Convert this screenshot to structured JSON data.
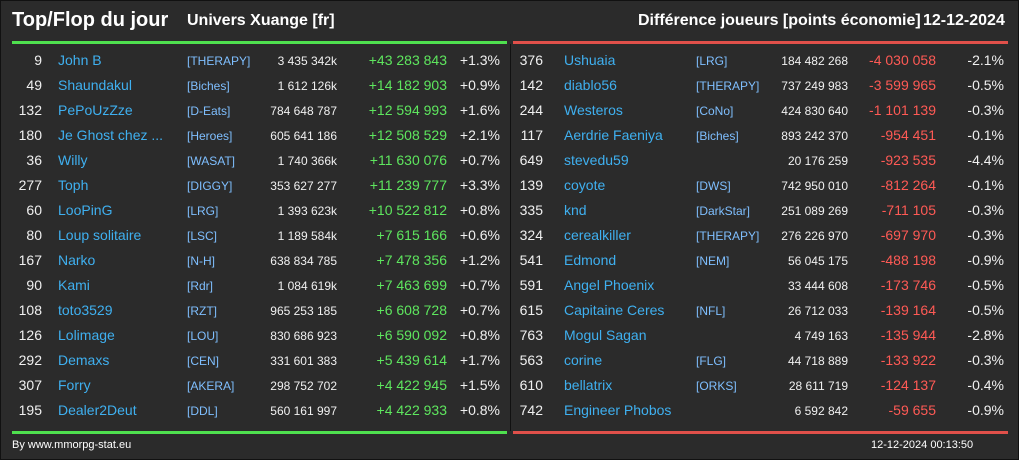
{
  "header": {
    "title": "Top/Flop du jour",
    "universe": "Univers Xuange [fr]",
    "difference": "Différence joueurs [points économie]",
    "date": "12-12-2024"
  },
  "footer": {
    "source": "By www.mmorpg-stat.eu",
    "timestamp": "12-12-2024 00:13:50"
  },
  "colors": {
    "top_accent": "#4fe04f",
    "flop_accent": "#e0504a",
    "name_color": "#3fb0f0"
  },
  "top": [
    {
      "rank": "9",
      "name": "John B",
      "tag": "[THERAPY]",
      "points": "3 435 342k",
      "delta": "+43 283 843",
      "pct": "+1.3%"
    },
    {
      "rank": "49",
      "name": "Shaundakul",
      "tag": "[Biches]",
      "points": "1 612 126k",
      "delta": "+14 182 903",
      "pct": "+0.9%"
    },
    {
      "rank": "132",
      "name": "PePoUzZze",
      "tag": "[D-Eats]",
      "points": "784 648 787",
      "delta": "+12 594 993",
      "pct": "+1.6%"
    },
    {
      "rank": "180",
      "name": "Je Ghost chez ...",
      "tag": "[Heroes]",
      "points": "605 641 186",
      "delta": "+12 508 529",
      "pct": "+2.1%"
    },
    {
      "rank": "36",
      "name": "Willy",
      "tag": "[WASAT]",
      "points": "1 740 366k",
      "delta": "+11 630 076",
      "pct": "+0.7%"
    },
    {
      "rank": "277",
      "name": "Toph",
      "tag": "[DIGGY]",
      "points": "353 627 277",
      "delta": "+11 239 777",
      "pct": "+3.3%"
    },
    {
      "rank": "60",
      "name": "LooPinG",
      "tag": "[LRG]",
      "points": "1 393 623k",
      "delta": "+10 522 812",
      "pct": "+0.8%"
    },
    {
      "rank": "80",
      "name": "Loup solitaire",
      "tag": "[LSC]",
      "points": "1 189 584k",
      "delta": "+7 615 166",
      "pct": "+0.6%"
    },
    {
      "rank": "167",
      "name": "Narko",
      "tag": "[N-H]",
      "points": "638 834 785",
      "delta": "+7 478 356",
      "pct": "+1.2%"
    },
    {
      "rank": "90",
      "name": "Kami",
      "tag": "[Rdr]",
      "points": "1 084 619k",
      "delta": "+7 463 699",
      "pct": "+0.7%"
    },
    {
      "rank": "108",
      "name": "toto3529",
      "tag": "[RZT]",
      "points": "965 253 185",
      "delta": "+6 608 728",
      "pct": "+0.7%"
    },
    {
      "rank": "126",
      "name": "Lolimage",
      "tag": "[LOU]",
      "points": "830 686 923",
      "delta": "+6 590 092",
      "pct": "+0.8%"
    },
    {
      "rank": "292",
      "name": "Demaxs",
      "tag": "[CEN]",
      "points": "331 601 383",
      "delta": "+5 439 614",
      "pct": "+1.7%"
    },
    {
      "rank": "307",
      "name": "Forry",
      "tag": "[AKERA]",
      "points": "298 752 702",
      "delta": "+4 422 945",
      "pct": "+1.5%"
    },
    {
      "rank": "195",
      "name": "Dealer2Deut",
      "tag": "[DDL]",
      "points": "560 161 997",
      "delta": "+4 422 933",
      "pct": "+0.8%"
    }
  ],
  "flop": [
    {
      "rank": "376",
      "name": "Ushuaia",
      "tag": "[LRG]",
      "points": "184 482 268",
      "delta": "-4 030 058",
      "pct": "-2.1%"
    },
    {
      "rank": "142",
      "name": "diablo56",
      "tag": "[THERAPY]",
      "points": "737 249 983",
      "delta": "-3 599 965",
      "pct": "-0.5%"
    },
    {
      "rank": "244",
      "name": "Westeros",
      "tag": "[CoNo]",
      "points": "424 830 640",
      "delta": "-1 101 139",
      "pct": "-0.3%"
    },
    {
      "rank": "117",
      "name": "Aerdrie Faeniya",
      "tag": "[Biches]",
      "points": "893 242 370",
      "delta": "-954 451",
      "pct": "-0.1%"
    },
    {
      "rank": "649",
      "name": "stevedu59",
      "tag": "",
      "points": "20 176 259",
      "delta": "-923 535",
      "pct": "-4.4%"
    },
    {
      "rank": "139",
      "name": "coyote",
      "tag": "[DWS]",
      "points": "742 950 010",
      "delta": "-812 264",
      "pct": "-0.1%"
    },
    {
      "rank": "335",
      "name": "knd",
      "tag": "[DarkStar]",
      "points": "251 089 269",
      "delta": "-711 105",
      "pct": "-0.3%"
    },
    {
      "rank": "324",
      "name": "cerealkiller",
      "tag": "[THERAPY]",
      "points": "276 226 970",
      "delta": "-697 970",
      "pct": "-0.3%"
    },
    {
      "rank": "541",
      "name": "Edmond",
      "tag": "[NEM]",
      "points": "56 045 175",
      "delta": "-488 198",
      "pct": "-0.9%"
    },
    {
      "rank": "591",
      "name": "Angel Phoenix",
      "tag": "",
      "points": "33 444 608",
      "delta": "-173 746",
      "pct": "-0.5%"
    },
    {
      "rank": "615",
      "name": "Capitaine Ceres",
      "tag": "[NFL]",
      "points": "26 712 033",
      "delta": "-139 164",
      "pct": "-0.5%"
    },
    {
      "rank": "763",
      "name": "Mogul Sagan",
      "tag": "",
      "points": "4 749 163",
      "delta": "-135 944",
      "pct": "-2.8%"
    },
    {
      "rank": "563",
      "name": "corine",
      "tag": "[FLG]",
      "points": "44 718 889",
      "delta": "-133 922",
      "pct": "-0.3%"
    },
    {
      "rank": "610",
      "name": "bellatrix",
      "tag": "[ORKS]",
      "points": "28 611 719",
      "delta": "-124 137",
      "pct": "-0.4%"
    },
    {
      "rank": "742",
      "name": "Engineer Phobos",
      "tag": "",
      "points": "6 592 842",
      "delta": "-59 655",
      "pct": "-0.9%"
    }
  ]
}
